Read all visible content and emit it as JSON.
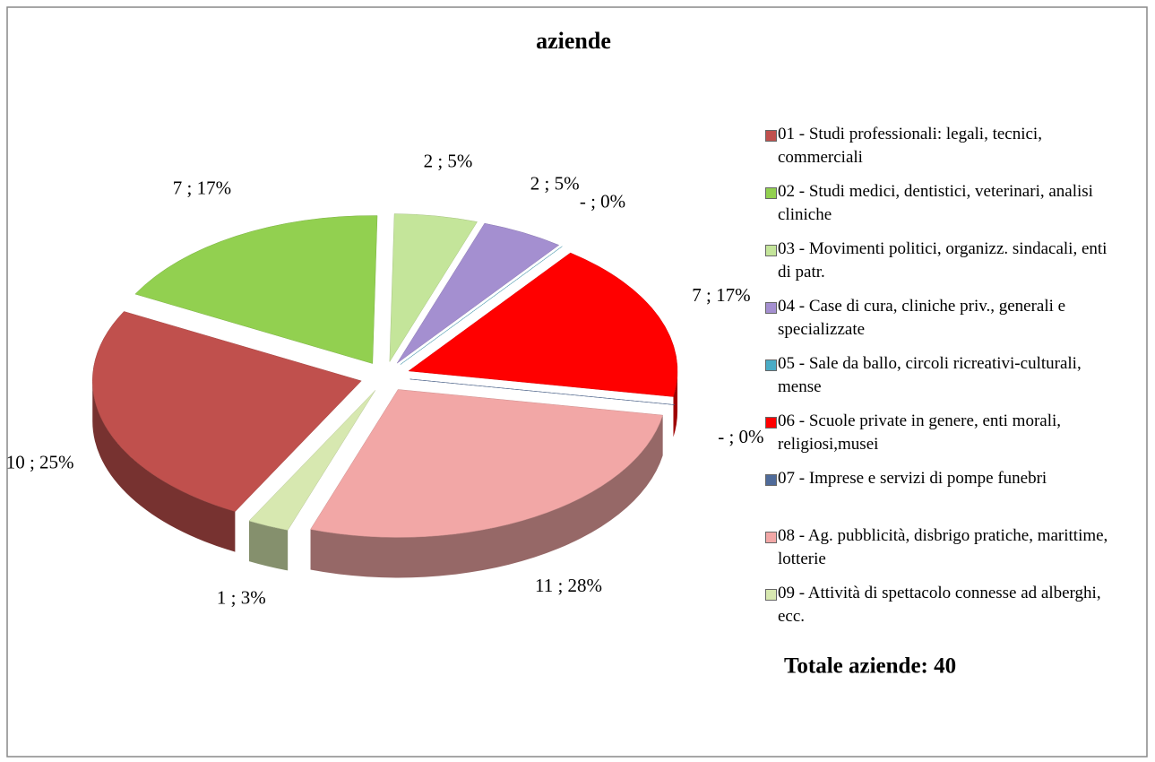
{
  "chart_data": {
    "type": "pie",
    "title": "aziende",
    "categories": [
      "01 - Studi professionali: legali, tecnici, commerciali",
      "02 - Studi medici, dentistici, veterinari, analisi cliniche",
      "03 - Movimenti politici, organizz. sindacali, enti di patr.",
      "04 - Case di cura, cliniche priv., generali e specializzate",
      "05 - Sale da ballo, circoli ricreativi-culturali, mense",
      "06 - Scuole private in genere, enti morali, religiosi,musei",
      "07 - Imprese e servizi di pompe funebri",
      "08 - Ag. pubblicità, disbrigo pratiche, marittime, lotterie",
      "09 - Attività di spettacolo connesse ad alberghi, ecc."
    ],
    "values": [
      10,
      7,
      2,
      2,
      0,
      7,
      0,
      11,
      1
    ],
    "value_labels": [
      "10 ; 25%",
      "7 ; 17%",
      "2 ; 5%",
      "2 ; 5%",
      "-   ; 0%",
      "7 ; 17%",
      "-   ; 0%",
      "11 ; 28%",
      "1 ; 3%"
    ],
    "colors": [
      "#c0504d",
      "#92d050",
      "#c4e59a",
      "#a48fd0",
      "#4aacc6",
      "#ff0000",
      "#4f6b9a",
      "#f2a7a6",
      "#d7e8b0"
    ],
    "annotation": "Totale aziende: 40",
    "legend": "right"
  }
}
